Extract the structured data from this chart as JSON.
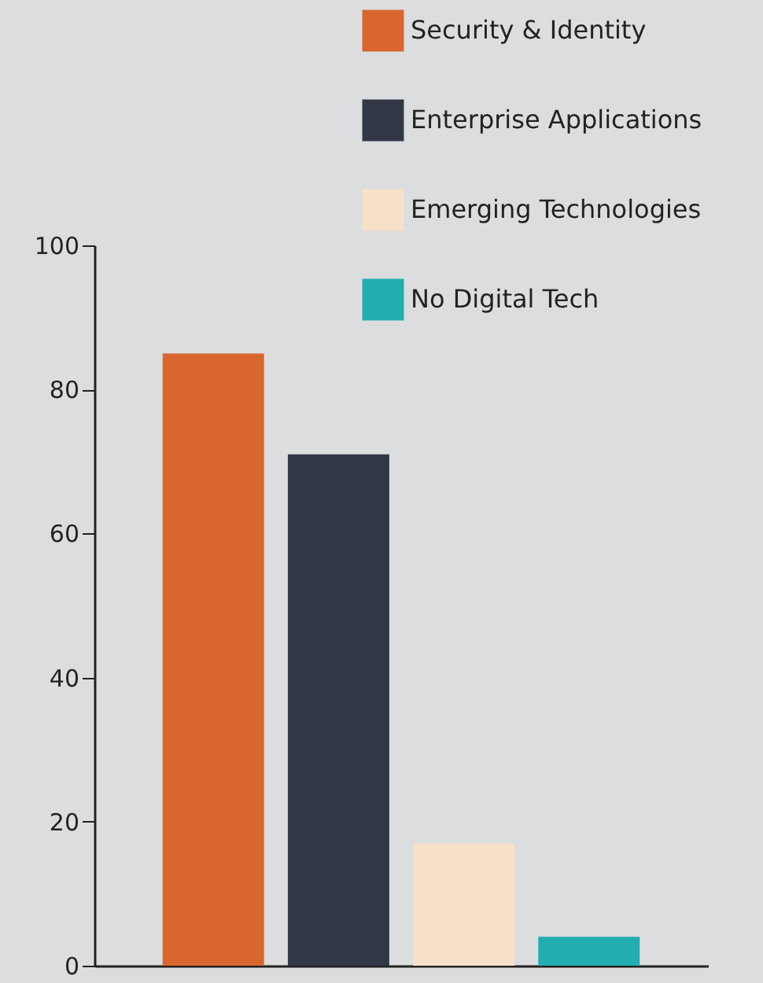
{
  "chart_data": {
    "type": "bar",
    "categories": [
      null,
      null,
      null,
      null
    ],
    "series": [
      {
        "name": "Security & Identity",
        "color": "#d9662f",
        "values": [
          85,
          null,
          null,
          null
        ]
      },
      {
        "name": "Enterprise Applications",
        "color": "#323746",
        "values": [
          null,
          71,
          null,
          null
        ]
      },
      {
        "name": "Emerging Technologies",
        "color": "#f6e1c8",
        "values": [
          null,
          null,
          17,
          null
        ]
      },
      {
        "name": "No Digital Tech",
        "color": "#22adb0",
        "values": [
          null,
          null,
          null,
          4
        ]
      }
    ],
    "ylim": [
      0,
      100
    ],
    "yticks": [
      0,
      20,
      40,
      60,
      80,
      100
    ],
    "legend": "top right",
    "tick_labels": "y"
  }
}
